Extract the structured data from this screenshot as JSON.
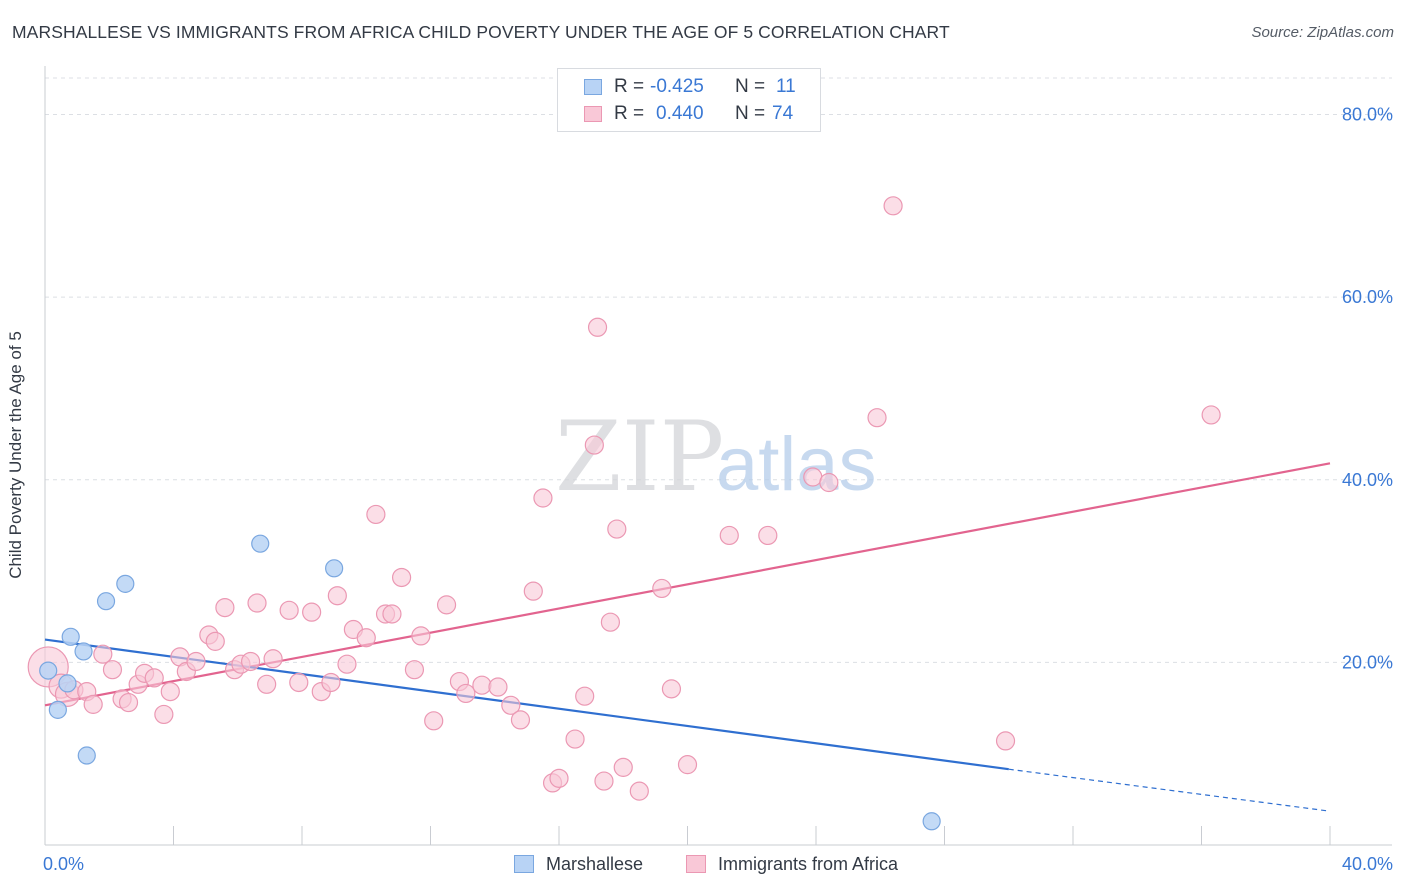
{
  "title": "MARSHALLESE VS IMMIGRANTS FROM AFRICA CHILD POVERTY UNDER THE AGE OF 5 CORRELATION CHART",
  "source": "Source: ZipAtlas.com",
  "watermark": {
    "zip": "ZIP",
    "atlas": "atlas"
  },
  "stats": {
    "marshallese": {
      "r_label": "R =",
      "r_value": "-0.425",
      "n_label": "N =",
      "n_value": "11"
    },
    "africa": {
      "r_label": "R =",
      "r_value": "0.440",
      "n_label": "N =",
      "n_value": "74"
    }
  },
  "legend": {
    "marshallese": "Marshallese",
    "africa": "Immigrants from Africa"
  },
  "colors": {
    "marshallese_fill": "#b8d3f5",
    "marshallese_stroke": "#7aa7e0",
    "marshallese_line": "#2f6fd0",
    "africa_fill": "#f9c8d7",
    "africa_stroke": "#eb98b3",
    "africa_line": "#e2648f",
    "tick_label": "#3a78d4",
    "grid": "#dcdfe4"
  },
  "chart_data": {
    "type": "scatter",
    "title": "MARSHALLESE VS IMMIGRANTS FROM AFRICA CHILD POVERTY UNDER THE AGE OF 5 CORRELATION CHART",
    "xlabel": "",
    "ylabel": "Child Poverty Under the Age of 5",
    "xlim": [
      0,
      40
    ],
    "ylim": [
      0,
      84
    ],
    "x_tick_labels": [
      "0.0%",
      "40.0%"
    ],
    "y_ticks": [
      20,
      40,
      60,
      80
    ],
    "y_tick_labels": [
      "20.0%",
      "40.0%",
      "60.0%",
      "80.0%"
    ],
    "grid": true,
    "legend_position": "bottom-center",
    "series": [
      {
        "name": "Marshallese",
        "x": [
          0.1,
          0.4,
          0.7,
          0.8,
          1.2,
          1.3,
          1.9,
          2.5,
          6.7,
          9.0,
          27.6
        ],
        "y": [
          19.1,
          14.8,
          17.7,
          22.8,
          21.2,
          9.8,
          26.7,
          28.6,
          33.0,
          30.3,
          2.6
        ],
        "trend": {
          "x": [
            0,
            30
          ],
          "y": [
            22.5,
            8.3
          ],
          "dashed_to": {
            "x": 40,
            "y": 3.7
          }
        }
      },
      {
        "name": "Immigrants from Africa",
        "x": [
          0.1,
          0.5,
          0.7,
          0.9,
          1.3,
          1.5,
          1.8,
          2.1,
          2.4,
          2.6,
          2.9,
          3.1,
          3.4,
          3.7,
          3.9,
          4.2,
          4.4,
          4.7,
          5.1,
          5.3,
          5.6,
          5.9,
          6.1,
          6.4,
          6.6,
          6.9,
          7.1,
          7.6,
          7.9,
          8.3,
          8.6,
          8.9,
          9.1,
          9.4,
          9.6,
          10.0,
          10.3,
          10.6,
          10.8,
          11.1,
          11.5,
          11.7,
          12.1,
          12.5,
          12.9,
          13.1,
          13.6,
          14.1,
          14.5,
          14.8,
          15.5,
          15.2,
          15.8,
          16.0,
          16.5,
          16.8,
          17.1,
          17.4,
          17.6,
          17.8,
          17.2,
          18.0,
          18.5,
          19.2,
          19.5,
          20.0,
          21.3,
          22.5,
          23.9,
          24.4,
          25.9,
          26.4,
          29.9,
          36.3
        ],
        "y": [
          19.5,
          17.4,
          16.5,
          17.0,
          16.8,
          15.4,
          20.9,
          19.2,
          16.0,
          15.6,
          17.6,
          18.8,
          18.3,
          14.3,
          16.8,
          20.6,
          19.0,
          20.1,
          23.0,
          22.3,
          26.0,
          19.2,
          19.8,
          20.1,
          26.5,
          17.6,
          20.4,
          25.7,
          17.8,
          25.5,
          16.8,
          17.8,
          27.3,
          19.8,
          23.6,
          22.7,
          36.2,
          25.3,
          25.3,
          29.3,
          19.2,
          22.9,
          13.6,
          26.3,
          17.9,
          16.6,
          17.5,
          17.3,
          15.3,
          13.7,
          38.0,
          27.8,
          6.8,
          7.3,
          11.6,
          16.3,
          43.8,
          7.0,
          24.4,
          34.6,
          56.7,
          8.5,
          5.9,
          28.1,
          17.1,
          8.8,
          33.9,
          33.9,
          40.3,
          39.7,
          46.8,
          70.0,
          11.4,
          47.1
        ],
        "trend": {
          "x": [
            0,
            40
          ],
          "y": [
            15.3,
            41.8
          ]
        }
      }
    ]
  }
}
